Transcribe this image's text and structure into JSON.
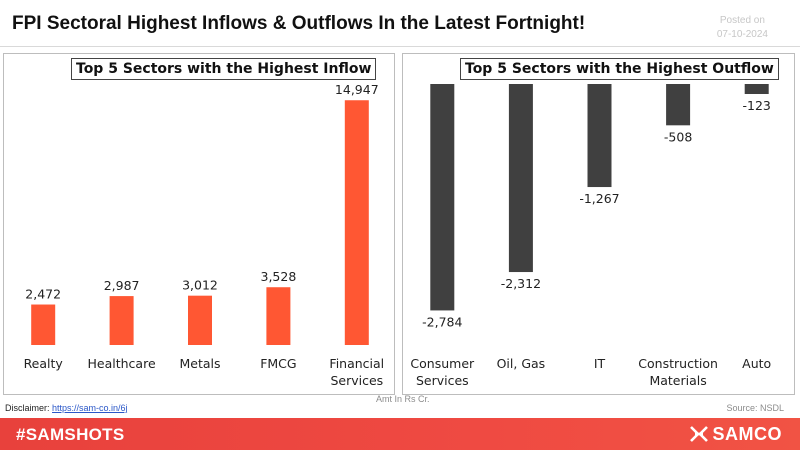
{
  "header": {
    "title": "FPI Sectoral Highest Inflows & Outflows In the Latest Fortnight!",
    "posted_label": "Posted on",
    "posted_date": "07-10-2024"
  },
  "chart_data": [
    {
      "type": "bar",
      "title": "Top 5 Sectors with the Highest Inflow",
      "categories": [
        [
          "Realty"
        ],
        [
          "Healthcare"
        ],
        [
          "Metals"
        ],
        [
          "FMCG"
        ],
        [
          "Financial",
          "Services"
        ]
      ],
      "values": [
        2472,
        2987,
        3012,
        3528,
        14947
      ],
      "value_labels": [
        "2,472",
        "2,987",
        "3,012",
        "3,528",
        "14,947"
      ],
      "ylim": [
        0,
        16000
      ],
      "color": "#ff5733",
      "grid": false
    },
    {
      "type": "bar",
      "title": "Top 5 Sectors with the Highest Outflow",
      "categories": [
        [
          "Consumer",
          "Services"
        ],
        [
          "Oil, Gas"
        ],
        [
          "IT"
        ],
        [
          "Construction",
          "Materials"
        ],
        [
          "Auto"
        ]
      ],
      "values": [
        -2784,
        -2312,
        -1267,
        -508,
        -123
      ],
      "value_labels": [
        "-2,784",
        "-2,312",
        "-1,267",
        "-508",
        "-123"
      ],
      "ylim": [
        -3000,
        0
      ],
      "color": "#404040",
      "grid": false
    }
  ],
  "notes": {
    "unit": "Amt In Rs Cr.",
    "disclaimer_label": "Disclaimer:",
    "disclaimer_link": "https://sam-co.in/6j",
    "source": "Source: NSDL"
  },
  "footer": {
    "hashtag": "#SAMSHOTS",
    "brand": "SAMCO",
    "background": "#ef4a42"
  }
}
